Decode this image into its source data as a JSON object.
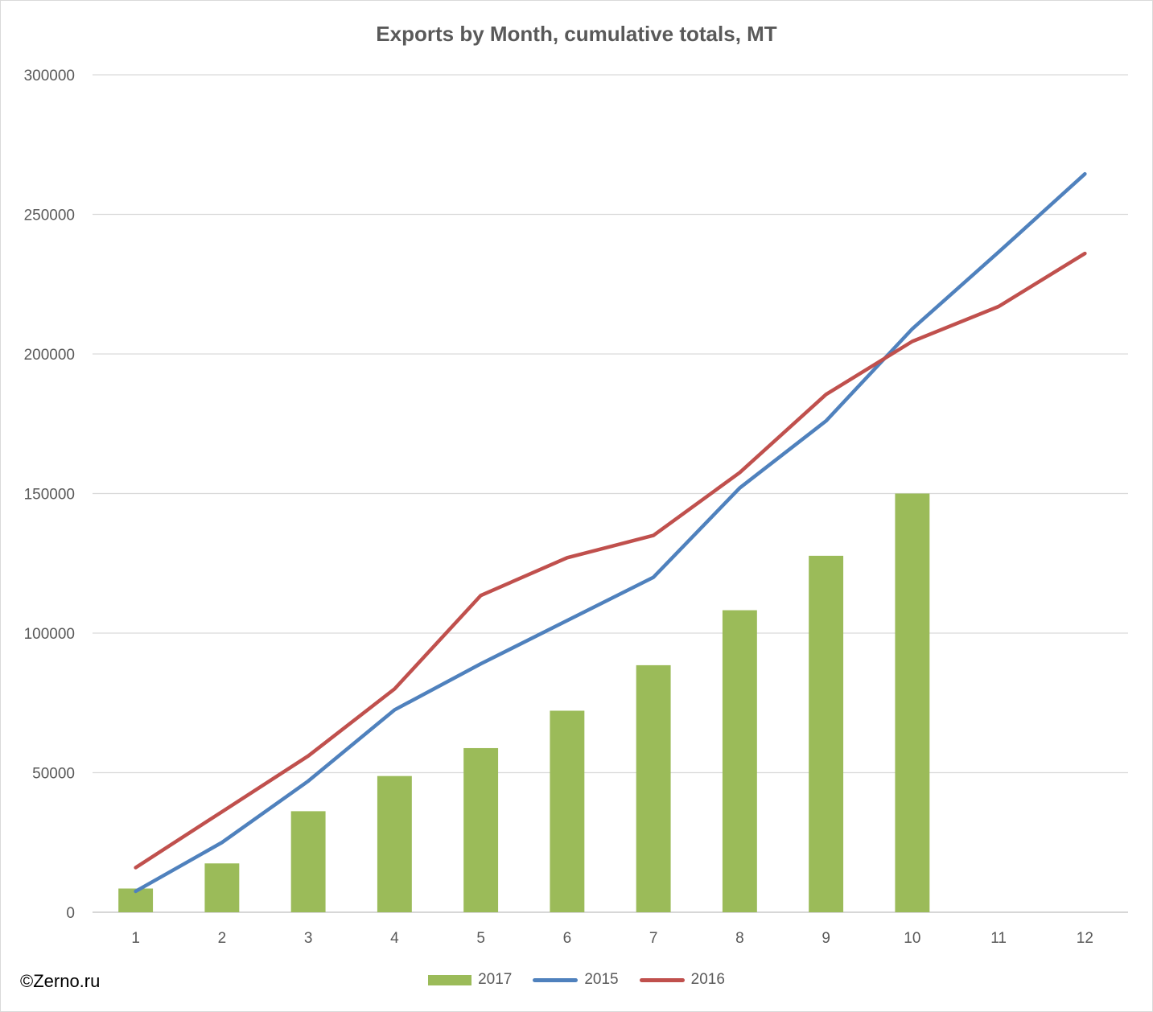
{
  "watermark": "©Zerno.ru",
  "chart_data": {
    "type": "bar",
    "title": "Exports by Month, cumulative totals, MT",
    "xlabel": "",
    "ylabel": "",
    "categories": [
      "1",
      "2",
      "3",
      "4",
      "5",
      "6",
      "7",
      "8",
      "9",
      "10",
      "11",
      "12"
    ],
    "ylim": [
      0,
      300000
    ],
    "yticks": [
      "0",
      "50000",
      "100000",
      "150000",
      "200000",
      "250000",
      "300000"
    ],
    "grid": true,
    "legend_position": "bottom",
    "series": [
      {
        "name": "2017",
        "kind": "bar",
        "color": "#9bbb59",
        "values": [
          8500,
          17500,
          36200,
          48800,
          58800,
          72200,
          88500,
          108200,
          127700,
          150000,
          null,
          null
        ]
      },
      {
        "name": "2015",
        "kind": "line",
        "color": "#4f81bd",
        "values": [
          7500,
          25000,
          47000,
          72500,
          89000,
          104500,
          120000,
          152000,
          176000,
          209000,
          236500,
          264500
        ]
      },
      {
        "name": "2016",
        "kind": "line",
        "color": "#c0504d",
        "values": [
          16000,
          36000,
          56000,
          80000,
          113500,
          127000,
          135000,
          157500,
          185500,
          204500,
          217000,
          236000
        ]
      }
    ]
  }
}
